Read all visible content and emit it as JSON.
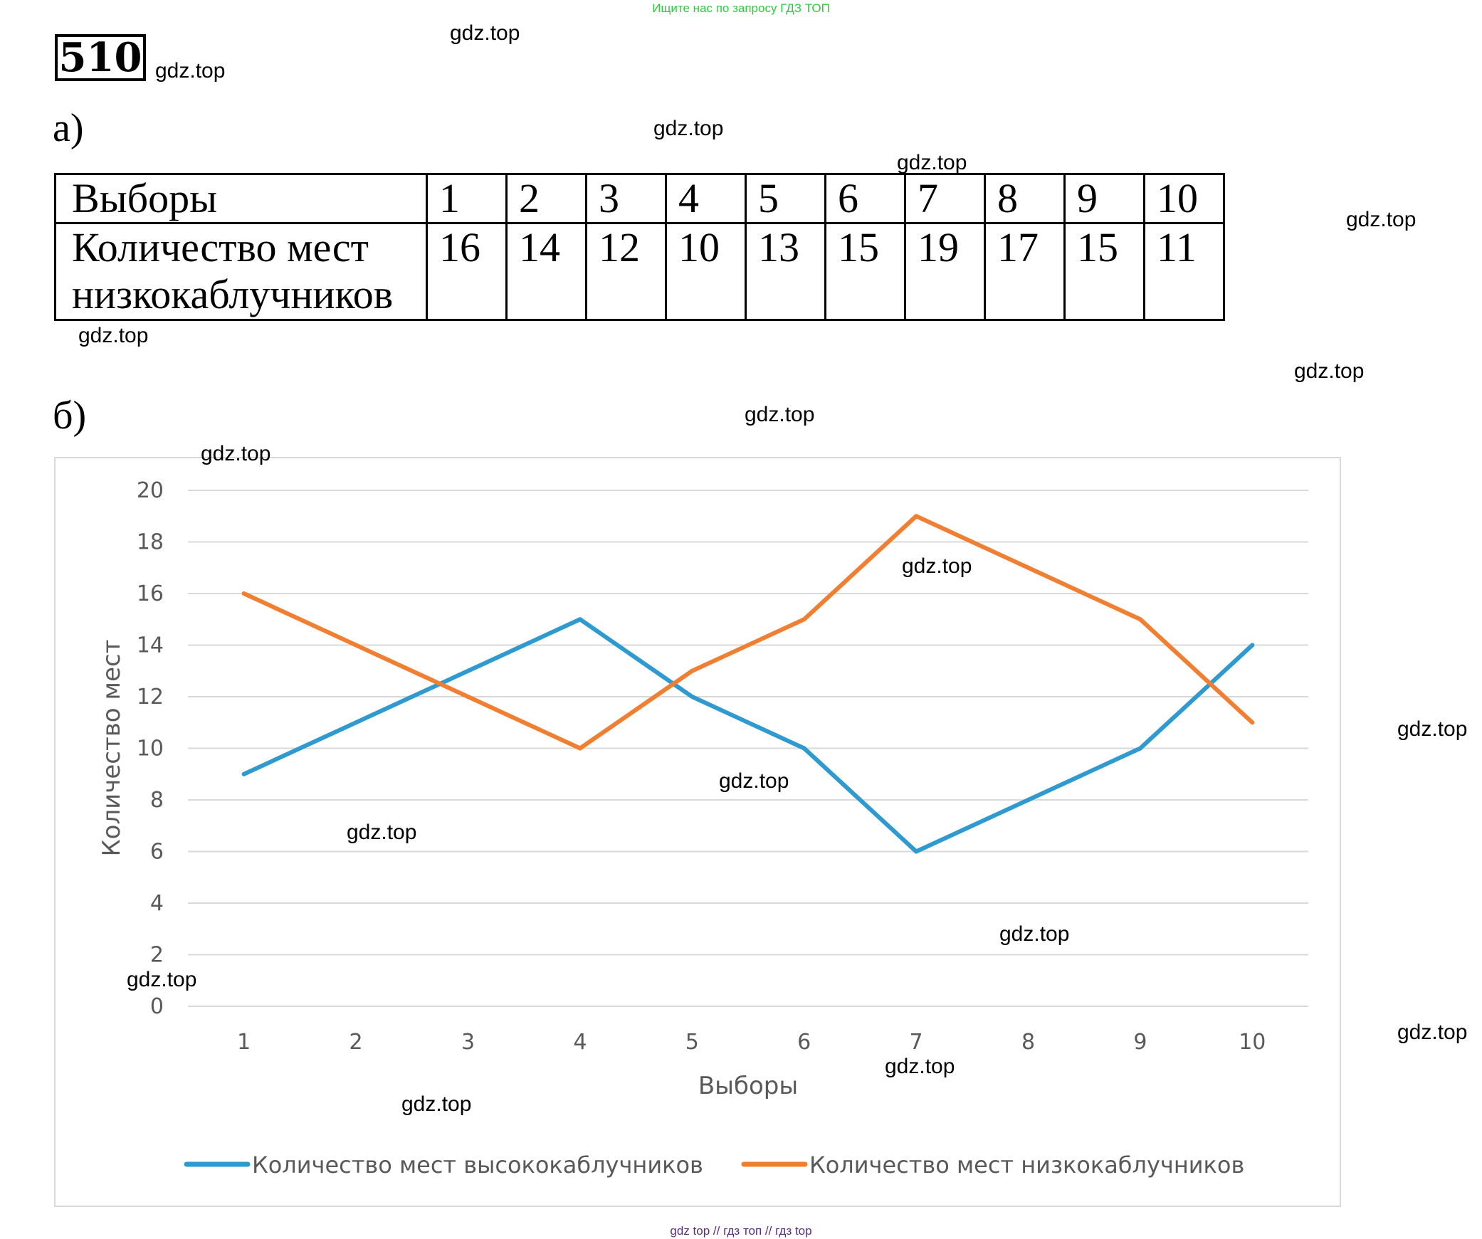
{
  "header": {
    "search_hint": "Ищите нас по запросу ГДЗ ТОП"
  },
  "task": {
    "number": "510"
  },
  "parts": {
    "a": "а)",
    "b": "б)"
  },
  "table": {
    "row1_label": "Выборы",
    "row2_label_line1": "Количество мест",
    "row2_label_line2": "низкокаблучников",
    "samples": [
      "1",
      "2",
      "3",
      "4",
      "5",
      "6",
      "7",
      "8",
      "9",
      "10"
    ],
    "values": [
      "16",
      "14",
      "12",
      "10",
      "13",
      "15",
      "19",
      "17",
      "15",
      "11"
    ]
  },
  "watermarks": [
    "gdz.top",
    "gdz.top",
    "gdz.top",
    "gdz.top",
    "gdz.top",
    "gdz.top",
    "gdz.top",
    "gdz.top",
    "gdz.top",
    "gdz.top",
    "gdz.top",
    "gdz.top",
    "gdz.top",
    "gdz.top",
    "gdz.top",
    "gdz.top",
    "gdz.top",
    "gdz.top"
  ],
  "chart_data": {
    "type": "line",
    "title": "",
    "xlabel": "Выборы",
    "ylabel": "Количество мест",
    "ylim": [
      0,
      20
    ],
    "yticks": [
      "0",
      "2",
      "4",
      "6",
      "8",
      "10",
      "12",
      "14",
      "16",
      "18",
      "20"
    ],
    "categories": [
      "1",
      "2",
      "3",
      "4",
      "5",
      "6",
      "7",
      "8",
      "9",
      "10"
    ],
    "grid": true,
    "legend_position": "bottom",
    "series": [
      {
        "name": "Количество мест высококаблучников",
        "color": "#2e9ad0",
        "values": [
          9,
          11,
          13,
          15,
          12,
          10,
          6,
          8,
          10,
          14
        ]
      },
      {
        "name": "Количество мест низкокаблучников",
        "color": "#f07f32",
        "values": [
          16,
          14,
          12,
          10,
          13,
          15,
          19,
          17,
          15,
          11
        ]
      }
    ]
  },
  "footer": {
    "text": "gdz top  //  гдз топ  //  гдз top"
  }
}
